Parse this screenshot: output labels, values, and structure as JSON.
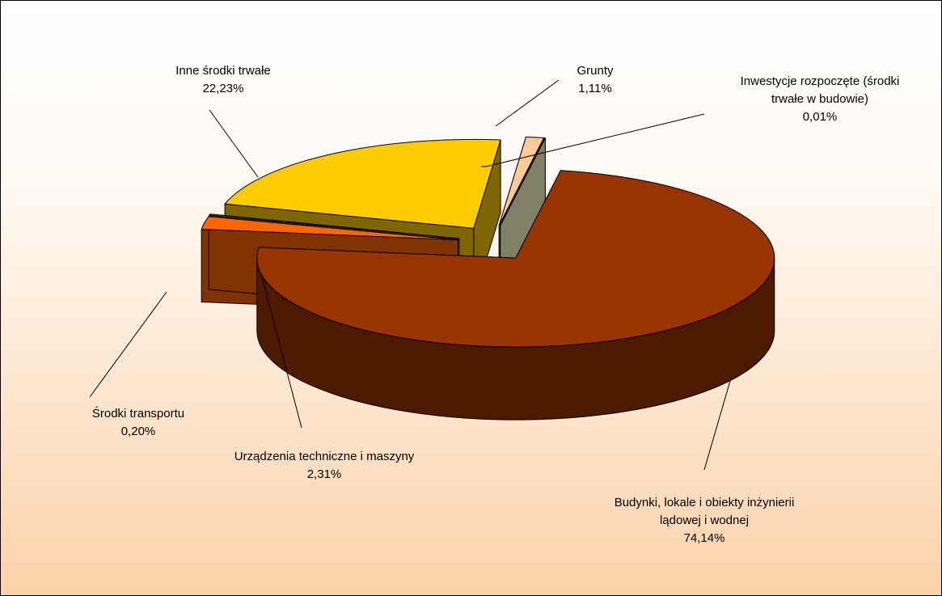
{
  "chart_data": {
    "type": "pie",
    "categories": [
      "Budynki, lokale i obiekty inżynierii lądowej i wodnej",
      "Urządzenia techniczne i maszyny",
      "Środki transportu",
      "Inne środki trwałe",
      "Grunty",
      "Inwestycje rozpoczęte (środki trwałe w budowie)"
    ],
    "values": [
      74.14,
      2.31,
      0.2,
      22.23,
      1.11,
      0.01
    ],
    "value_labels": [
      "74,14%",
      "2,31%",
      "0,20%",
      "22,23%",
      "1,11%",
      "0,01%"
    ],
    "colors": [
      "#993300",
      "#ff6600",
      "#808050",
      "#ffcc00",
      "#ffcc99",
      "#ffffcc"
    ]
  }
}
